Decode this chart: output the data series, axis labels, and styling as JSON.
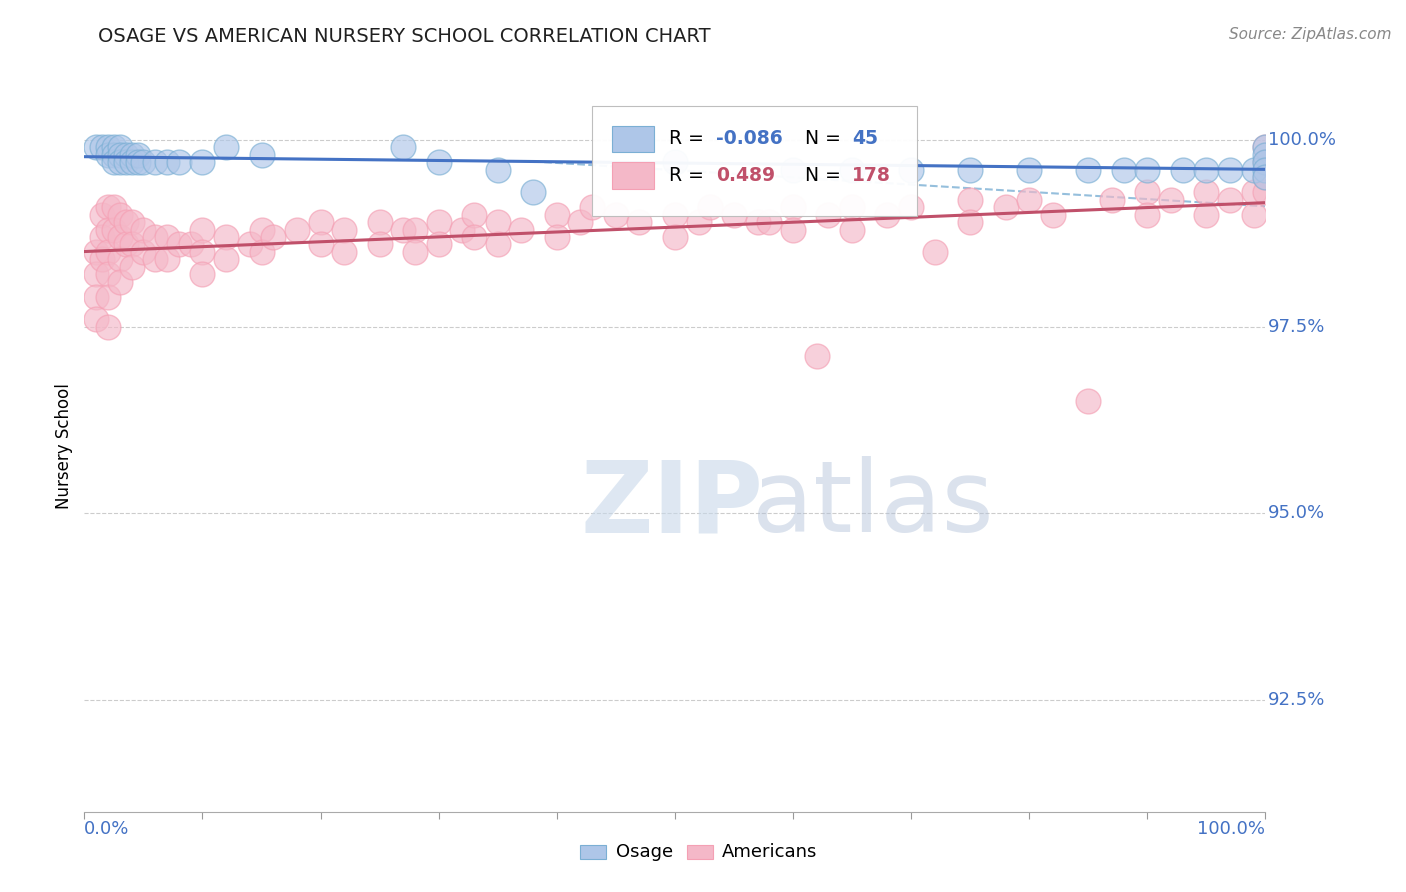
{
  "title": "OSAGE VS AMERICAN NURSERY SCHOOL CORRELATION CHART",
  "source": "Source: ZipAtlas.com",
  "ylabel": "Nursery School",
  "ytick_labels": [
    "92.5%",
    "95.0%",
    "97.5%",
    "100.0%"
  ],
  "ytick_values": [
    0.925,
    0.95,
    0.975,
    1.0
  ],
  "xlim": [
    0.0,
    1.0
  ],
  "ylim": [
    0.91,
    1.008
  ],
  "blue_color": "#7bafd4",
  "pink_color": "#f4a0b4",
  "blue_fill": "#aec6e8",
  "pink_fill": "#f4b8c8",
  "blue_line": "#4472c4",
  "pink_line": "#c0506a",
  "title_color": "#404040",
  "ytick_color": "#4472c4",
  "osage_points": [
    [
      0.01,
      0.999
    ],
    [
      0.015,
      0.999
    ],
    [
      0.02,
      0.999
    ],
    [
      0.02,
      0.998
    ],
    [
      0.025,
      0.999
    ],
    [
      0.025,
      0.998
    ],
    [
      0.025,
      0.997
    ],
    [
      0.03,
      0.999
    ],
    [
      0.03,
      0.998
    ],
    [
      0.03,
      0.997
    ],
    [
      0.035,
      0.998
    ],
    [
      0.035,
      0.997
    ],
    [
      0.04,
      0.998
    ],
    [
      0.04,
      0.997
    ],
    [
      0.045,
      0.998
    ],
    [
      0.045,
      0.997
    ],
    [
      0.05,
      0.997
    ],
    [
      0.06,
      0.997
    ],
    [
      0.07,
      0.997
    ],
    [
      0.08,
      0.997
    ],
    [
      0.1,
      0.997
    ],
    [
      0.12,
      0.999
    ],
    [
      0.15,
      0.998
    ],
    [
      0.27,
      0.999
    ],
    [
      0.3,
      0.997
    ],
    [
      0.35,
      0.996
    ],
    [
      0.38,
      0.993
    ],
    [
      0.5,
      0.997
    ],
    [
      0.6,
      0.996
    ],
    [
      0.65,
      0.996
    ],
    [
      0.7,
      0.996
    ],
    [
      0.75,
      0.996
    ],
    [
      0.8,
      0.996
    ],
    [
      0.85,
      0.996
    ],
    [
      0.88,
      0.996
    ],
    [
      0.9,
      0.996
    ],
    [
      0.93,
      0.996
    ],
    [
      0.95,
      0.996
    ],
    [
      0.97,
      0.996
    ],
    [
      0.99,
      0.996
    ],
    [
      1.0,
      0.999
    ],
    [
      1.0,
      0.998
    ],
    [
      1.0,
      0.997
    ],
    [
      1.0,
      0.996
    ],
    [
      1.0,
      0.995
    ]
  ],
  "americans_points": [
    [
      0.01,
      0.985
    ],
    [
      0.01,
      0.982
    ],
    [
      0.01,
      0.979
    ],
    [
      0.01,
      0.976
    ],
    [
      0.015,
      0.99
    ],
    [
      0.015,
      0.987
    ],
    [
      0.015,
      0.984
    ],
    [
      0.02,
      0.991
    ],
    [
      0.02,
      0.988
    ],
    [
      0.02,
      0.985
    ],
    [
      0.02,
      0.982
    ],
    [
      0.02,
      0.979
    ],
    [
      0.02,
      0.975
    ],
    [
      0.025,
      0.991
    ],
    [
      0.025,
      0.988
    ],
    [
      0.03,
      0.99
    ],
    [
      0.03,
      0.987
    ],
    [
      0.03,
      0.984
    ],
    [
      0.03,
      0.981
    ],
    [
      0.035,
      0.989
    ],
    [
      0.035,
      0.986
    ],
    [
      0.04,
      0.989
    ],
    [
      0.04,
      0.986
    ],
    [
      0.04,
      0.983
    ],
    [
      0.05,
      0.988
    ],
    [
      0.05,
      0.985
    ],
    [
      0.06,
      0.987
    ],
    [
      0.06,
      0.984
    ],
    [
      0.07,
      0.987
    ],
    [
      0.07,
      0.984
    ],
    [
      0.08,
      0.986
    ],
    [
      0.09,
      0.986
    ],
    [
      0.1,
      0.988
    ],
    [
      0.1,
      0.985
    ],
    [
      0.1,
      0.982
    ],
    [
      0.12,
      0.987
    ],
    [
      0.12,
      0.984
    ],
    [
      0.14,
      0.986
    ],
    [
      0.15,
      0.988
    ],
    [
      0.15,
      0.985
    ],
    [
      0.16,
      0.987
    ],
    [
      0.18,
      0.988
    ],
    [
      0.2,
      0.989
    ],
    [
      0.2,
      0.986
    ],
    [
      0.22,
      0.988
    ],
    [
      0.22,
      0.985
    ],
    [
      0.25,
      0.989
    ],
    [
      0.25,
      0.986
    ],
    [
      0.27,
      0.988
    ],
    [
      0.28,
      0.988
    ],
    [
      0.28,
      0.985
    ],
    [
      0.3,
      0.989
    ],
    [
      0.3,
      0.986
    ],
    [
      0.32,
      0.988
    ],
    [
      0.33,
      0.99
    ],
    [
      0.33,
      0.987
    ],
    [
      0.35,
      0.989
    ],
    [
      0.35,
      0.986
    ],
    [
      0.37,
      0.988
    ],
    [
      0.4,
      0.99
    ],
    [
      0.4,
      0.987
    ],
    [
      0.42,
      0.989
    ],
    [
      0.43,
      0.991
    ],
    [
      0.45,
      0.99
    ],
    [
      0.47,
      0.989
    ],
    [
      0.5,
      0.99
    ],
    [
      0.5,
      0.987
    ],
    [
      0.52,
      0.989
    ],
    [
      0.53,
      0.991
    ],
    [
      0.55,
      0.99
    ],
    [
      0.57,
      0.989
    ],
    [
      0.58,
      0.989
    ],
    [
      0.6,
      0.991
    ],
    [
      0.6,
      0.988
    ],
    [
      0.62,
      0.971
    ],
    [
      0.63,
      0.99
    ],
    [
      0.65,
      0.991
    ],
    [
      0.65,
      0.988
    ],
    [
      0.68,
      0.99
    ],
    [
      0.7,
      0.991
    ],
    [
      0.72,
      0.985
    ],
    [
      0.75,
      0.992
    ],
    [
      0.75,
      0.989
    ],
    [
      0.78,
      0.991
    ],
    [
      0.8,
      0.992
    ],
    [
      0.82,
      0.99
    ],
    [
      0.85,
      0.965
    ],
    [
      0.87,
      0.992
    ],
    [
      0.9,
      0.993
    ],
    [
      0.9,
      0.99
    ],
    [
      0.92,
      0.992
    ],
    [
      0.95,
      0.993
    ],
    [
      0.95,
      0.99
    ],
    [
      0.97,
      0.992
    ],
    [
      0.99,
      0.993
    ],
    [
      0.99,
      0.99
    ],
    [
      1.0,
      0.999
    ],
    [
      1.0,
      0.997
    ],
    [
      1.0,
      0.995
    ],
    [
      1.0,
      0.993
    ]
  ]
}
